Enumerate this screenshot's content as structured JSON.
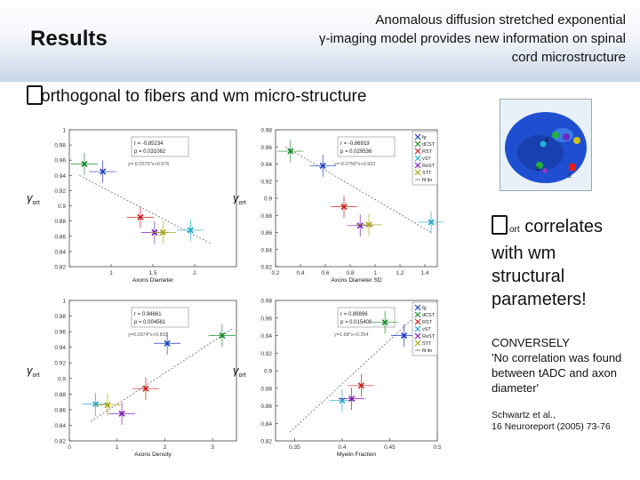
{
  "header": {
    "section": "Results",
    "title_line1": "Anomalous diffusion stretched exponential",
    "title_line2": "γ-imaging model provides new information on spinal",
    "title_line3": "cord microstructure"
  },
  "subtitle": "orthogonal to fibers and wm micro-structure",
  "side": {
    "line1_sub": "ort",
    "line1_rest": " correlates",
    "line2": "with wm",
    "line3": "structural",
    "line4": "parameters!"
  },
  "conversely": {
    "heading": "CONVERSELY",
    "quote": "'No correlation was found between tADC and axon diameter'",
    "citation_line1": "Schwartz et al.,",
    "citation_line2": "16 Neuroreport (2005) 73-76"
  },
  "colors": {
    "fg": "#1f3fbf",
    "dCST": "#1a8c2a",
    "RST": "#c8201d",
    "VST": "#24a6c8",
    "ReST": "#7a1fb5",
    "STT": "#a8a81c",
    "fit": "#666666"
  },
  "legend": {
    "items": [
      {
        "label": "fg",
        "key": "fg"
      },
      {
        "label": "dCST",
        "key": "dCST"
      },
      {
        "label": "RST",
        "key": "RST"
      },
      {
        "label": "vST",
        "key": "VST"
      },
      {
        "label": "ReST",
        "key": "ReST"
      },
      {
        "label": "STT",
        "key": "STT"
      },
      {
        "label": "fit lin",
        "key": "fit"
      }
    ]
  },
  "chart_data": [
    {
      "type": "scatter",
      "ylabel": "γort",
      "xlabel": "Axons Diameter",
      "xlim": [
        0.5,
        2.5
      ],
      "ylim": [
        0.82,
        1.0
      ],
      "xticks": [
        "1",
        "1.5",
        "2"
      ],
      "yticks": [
        "0.82",
        "0.84",
        "0.86",
        "0.88",
        "0.9",
        "0.92",
        "0.94",
        "0.96",
        "0.98",
        "1"
      ],
      "stats": [
        "r = -0.85234",
        "p = 0.031062"
      ],
      "fit_eq": "y=-0.0575*x+0.976",
      "points": [
        {
          "key": "dCST",
          "x": 0.68,
          "y": 0.955
        },
        {
          "key": "fg",
          "x": 0.9,
          "y": 0.945
        },
        {
          "key": "RST",
          "x": 1.35,
          "y": 0.885
        },
        {
          "key": "ReST",
          "x": 1.52,
          "y": 0.865
        },
        {
          "key": "STT",
          "x": 1.62,
          "y": 0.865
        },
        {
          "key": "VST",
          "x": 1.95,
          "y": 0.868
        }
      ],
      "fit": [
        [
          0.62,
          0.94
        ],
        [
          2.2,
          0.85
        ]
      ]
    },
    {
      "type": "scatter",
      "ylabel": "γort",
      "xlabel": "Axons Diameter SD",
      "xlim": [
        0.2,
        1.5
      ],
      "ylim": [
        0.82,
        0.98
      ],
      "xticks": [
        "0.2",
        "0.4",
        "0.6",
        "0.8",
        "1",
        "1.2",
        "1.4"
      ],
      "yticks": [
        "0.82",
        "0.84",
        "0.86",
        "0.88",
        "0.9",
        "0.92",
        "0.94",
        "0.96",
        "0.98"
      ],
      "stats": [
        "r = -0.86919",
        "p = 0.029536"
      ],
      "fit_eq": "y=-0.0756*x+0.952",
      "points": [
        {
          "key": "dCST",
          "x": 0.32,
          "y": 0.955
        },
        {
          "key": "fg",
          "x": 0.58,
          "y": 0.938
        },
        {
          "key": "RST",
          "x": 0.75,
          "y": 0.89
        },
        {
          "key": "ReST",
          "x": 0.88,
          "y": 0.868
        },
        {
          "key": "STT",
          "x": 0.95,
          "y": 0.869
        },
        {
          "key": "VST",
          "x": 1.45,
          "y": 0.872
        }
      ],
      "fit": [
        [
          0.28,
          0.96
        ],
        [
          1.45,
          0.86
        ]
      ]
    },
    {
      "type": "scatter",
      "ylabel": "γort",
      "xlabel": "Axons Density",
      "xlim": [
        0,
        3.5
      ],
      "ylim": [
        0.82,
        1.0
      ],
      "xticks": [
        "0",
        "1",
        "2",
        "3"
      ],
      "yticks": [
        "0.82",
        "0.84",
        "0.86",
        "0.88",
        "0.9",
        "0.92",
        "0.94",
        "0.96",
        "0.98",
        "1"
      ],
      "stats": [
        "r = 0.94661",
        "p = 0.004561"
      ],
      "fit_eq": "y=0.0374*x+0.832",
      "points": [
        {
          "key": "VST",
          "x": 0.55,
          "y": 0.867
        },
        {
          "key": "STT",
          "x": 0.8,
          "y": 0.866
        },
        {
          "key": "ReST",
          "x": 1.1,
          "y": 0.855
        },
        {
          "key": "RST",
          "x": 1.6,
          "y": 0.887
        },
        {
          "key": "fg",
          "x": 2.05,
          "y": 0.945
        },
        {
          "key": "dCST",
          "x": 3.2,
          "y": 0.955
        }
      ],
      "fit": [
        [
          0.45,
          0.845
        ],
        [
          3.45,
          0.965
        ]
      ]
    },
    {
      "type": "scatter",
      "ylabel": "γort",
      "xlabel": "Myelin Fraction",
      "xlim": [
        0.33,
        0.5
      ],
      "ylim": [
        0.82,
        0.98
      ],
      "xticks": [
        "0.35",
        "0.4",
        "0.45",
        "0.5"
      ],
      "yticks": [
        "0.82",
        "0.84",
        "0.86",
        "0.88",
        "0.9",
        "0.92",
        "0.94",
        "0.96",
        "0.98"
      ],
      "stats": [
        "r = 0.89896",
        "p = 0.015408"
      ],
      "fit_eq": "y=1.68*x+0.254",
      "points": [
        {
          "key": "VST",
          "x": 0.4,
          "y": 0.866
        },
        {
          "key": "ReST",
          "x": 0.41,
          "y": 0.868
        },
        {
          "key": "RST",
          "x": 0.42,
          "y": 0.883
        },
        {
          "key": "dCST",
          "x": 0.445,
          "y": 0.955
        },
        {
          "key": "fg",
          "x": 0.465,
          "y": 0.94
        }
      ],
      "fit": [
        [
          0.345,
          0.83
        ],
        [
          0.48,
          0.965
        ]
      ]
    }
  ]
}
